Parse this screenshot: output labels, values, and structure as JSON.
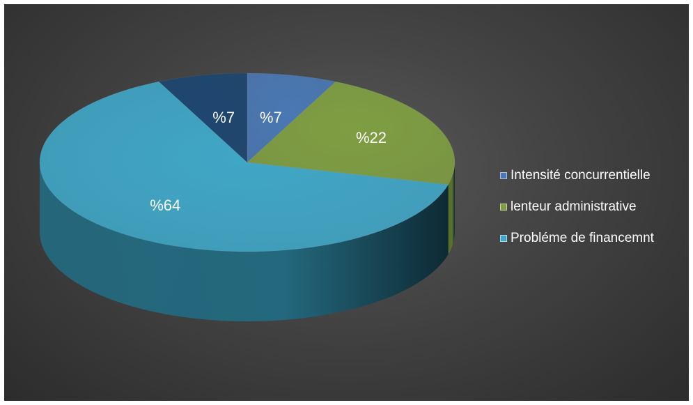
{
  "chart_data": {
    "type": "pie",
    "style": "3d",
    "title": "",
    "slices": [
      {
        "name": "Intensité concurrentielle",
        "value": 7,
        "label": "%7",
        "color": "#4a78b4",
        "side_color": "#2e527f"
      },
      {
        "name": "lenteur administrative",
        "value": 22,
        "label": "%22",
        "color": "#7f9e42",
        "side_color": "#59702c"
      },
      {
        "name": "Probléme de financemnt",
        "value": 64,
        "label": "%64",
        "color": "#40a6c6",
        "side_color": "#24687d"
      },
      {
        "name": "",
        "value": 7,
        "label": "%7",
        "color": "#1d4670",
        "side_color": "#12304f"
      }
    ],
    "legend": {
      "position": "right",
      "entries": [
        {
          "name": "Intensité concurrentielle",
          "color": "#4a78b4"
        },
        {
          "name": "lenteur administrative",
          "color": "#7f9e42"
        },
        {
          "name": "Probléme de financemnt",
          "color": "#40a6c6"
        }
      ]
    }
  }
}
